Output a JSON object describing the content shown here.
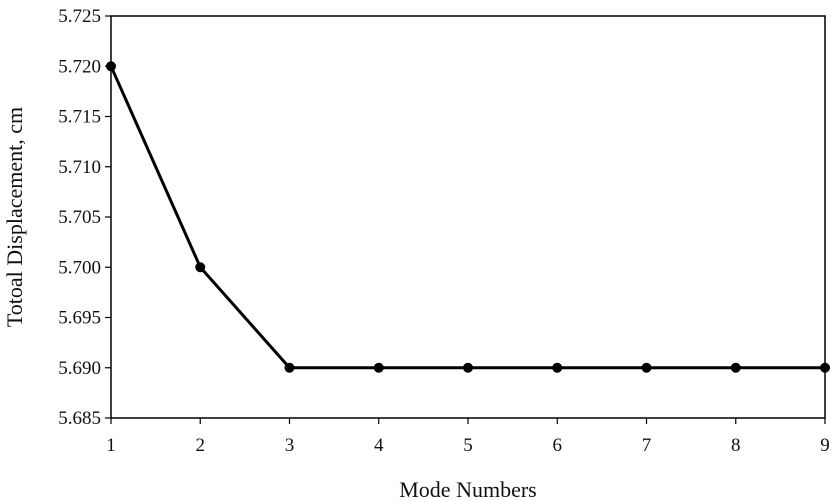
{
  "chart_data": {
    "type": "line",
    "title": "",
    "xlabel": "Mode Numbers",
    "ylabel": "Totoal Displacement, cm",
    "x": [
      1,
      2,
      3,
      4,
      5,
      6,
      7,
      8,
      9
    ],
    "series": [
      {
        "values": [
          5.72,
          5.7,
          5.69,
          5.69,
          5.69,
          5.69,
          5.69,
          5.69,
          5.69
        ]
      }
    ],
    "xlim": [
      1,
      9
    ],
    "ylim": [
      5.685,
      5.725
    ],
    "xticks": [
      "1",
      "2",
      "3",
      "4",
      "5",
      "6",
      "7",
      "8",
      "9"
    ],
    "yticks": [
      "5.685",
      "5.690",
      "5.695",
      "5.700",
      "5.705",
      "5.710",
      "5.715",
      "5.720",
      "5.725"
    ],
    "grid": false,
    "legend": "none",
    "colors": {
      "line": "#000000",
      "marker": "#000000",
      "frame": "#000000"
    }
  }
}
